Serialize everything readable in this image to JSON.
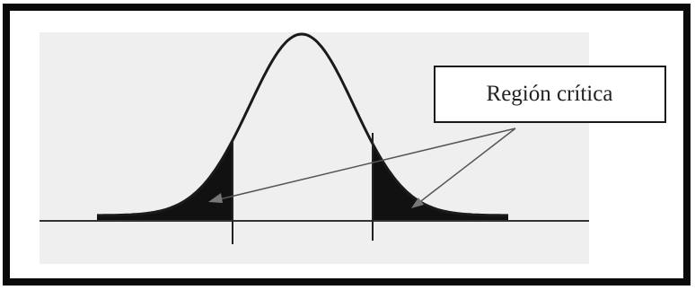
{
  "label": {
    "text": "Región crítica"
  },
  "colors": {
    "frame": "#0a0a0a",
    "panel_background": "#efefef",
    "curve": "#1a1a1a",
    "shaded_tail": "#111111",
    "label_box_fill": "#ffffff",
    "label_box_stroke": "#1a1a1a",
    "text": "#222222"
  }
}
